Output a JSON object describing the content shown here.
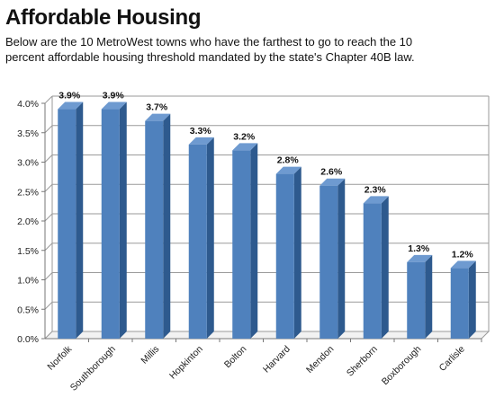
{
  "header": {
    "title": "Affordable Housing",
    "subtitle": "Below are the 10 MetroWest towns who have the farthest to go to reach the 10 percent affordable housing threshold mandated by the state's Chapter 40B law."
  },
  "chart_data": {
    "type": "bar",
    "categories": [
      "Norfolk",
      "Southborough",
      "Millis",
      "Hopkinton",
      "Bolton",
      "Harvard",
      "Mendon",
      "Sherborn",
      "Boxborough",
      "Carlisle"
    ],
    "values": [
      3.9,
      3.9,
      3.7,
      3.3,
      3.2,
      2.8,
      2.6,
      2.3,
      1.3,
      1.2
    ],
    "data_labels": [
      "3.9%",
      "3.9%",
      "3.7%",
      "3.3%",
      "3.2%",
      "2.8%",
      "2.6%",
      "2.3%",
      "1.3%",
      "1.2%"
    ],
    "y_ticks": [
      "0.0%",
      "0.5%",
      "1.0%",
      "1.5%",
      "2.0%",
      "2.5%",
      "3.0%",
      "3.5%",
      "4.0%"
    ],
    "ylim": [
      0,
      4
    ],
    "grid": true,
    "legend": "none",
    "bar_color": "#4F81BD",
    "bar_side_color": "#2E5A8E",
    "bar_top_color": "#6E9AD0"
  }
}
